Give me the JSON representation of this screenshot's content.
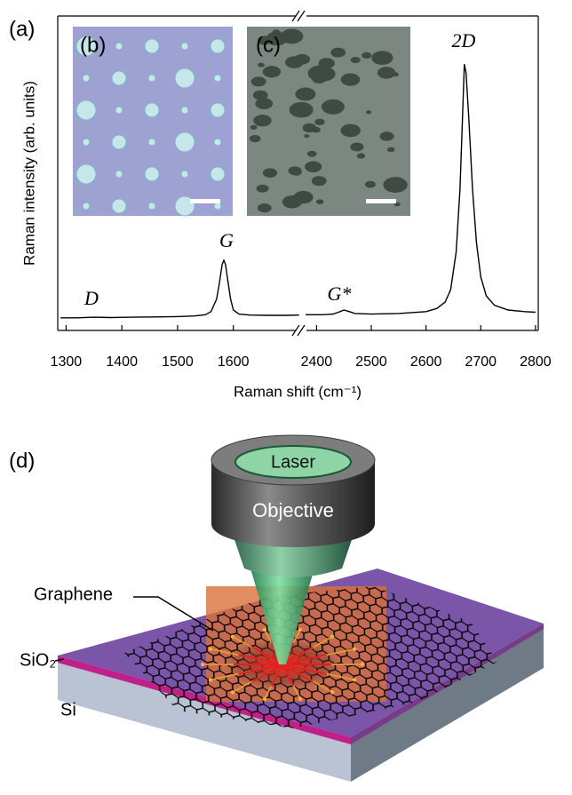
{
  "panel_labels": [
    "(a)",
    "(b)",
    "(c)",
    "(d)"
  ],
  "chart_data": [
    {
      "type": "line",
      "ylabel": "Raman intensity (arb. units)",
      "xlabel": "Raman shift (cm⁻¹)",
      "annotations": [
        "D",
        "G"
      ],
      "color": "#000000",
      "xlim": [
        1285,
        1720
      ],
      "xticks": [
        1300,
        1400,
        1500,
        1600
      ],
      "ylim": [
        0,
        100
      ],
      "x": [
        1290,
        1320,
        1350,
        1380,
        1420,
        1460,
        1500,
        1530,
        1550,
        1560,
        1570,
        1575,
        1580,
        1583,
        1586,
        1590,
        1595,
        1600,
        1610,
        1630,
        1660,
        1700,
        1718
      ],
      "values": [
        4.0,
        4.0,
        4.2,
        4.1,
        4.2,
        4.3,
        4.4,
        4.6,
        5.0,
        6.0,
        10,
        15,
        21,
        22.3,
        21,
        16,
        10,
        6.5,
        5.2,
        4.9,
        4.8,
        4.8,
        4.9
      ]
    },
    {
      "type": "line",
      "annotations": [
        "G*",
        "2D"
      ],
      "color": "#000000",
      "xlim": [
        2375,
        2805
      ],
      "xticks": [
        2400,
        2500,
        2600,
        2700,
        2800
      ],
      "ylim": [
        0,
        100
      ],
      "x": [
        2380,
        2410,
        2430,
        2440,
        2450,
        2460,
        2470,
        2500,
        2550,
        2600,
        2620,
        2635,
        2645,
        2655,
        2662,
        2667,
        2670,
        2673,
        2678,
        2685,
        2692,
        2700,
        2710,
        2725,
        2750,
        2780,
        2800
      ],
      "values": [
        5.0,
        5.0,
        5.2,
        5.8,
        6.5,
        6.0,
        5.4,
        5.2,
        5.4,
        6.0,
        7,
        9,
        13,
        25,
        45,
        70,
        84.7,
        82,
        68,
        45,
        28,
        17,
        11,
        8,
        6.5,
        6.0,
        5.8
      ]
    }
  ],
  "diagram": {
    "laser": "Laser",
    "objective": "Objective",
    "graphene": "Graphene",
    "sio2": "SiO₂",
    "si": "Si"
  }
}
